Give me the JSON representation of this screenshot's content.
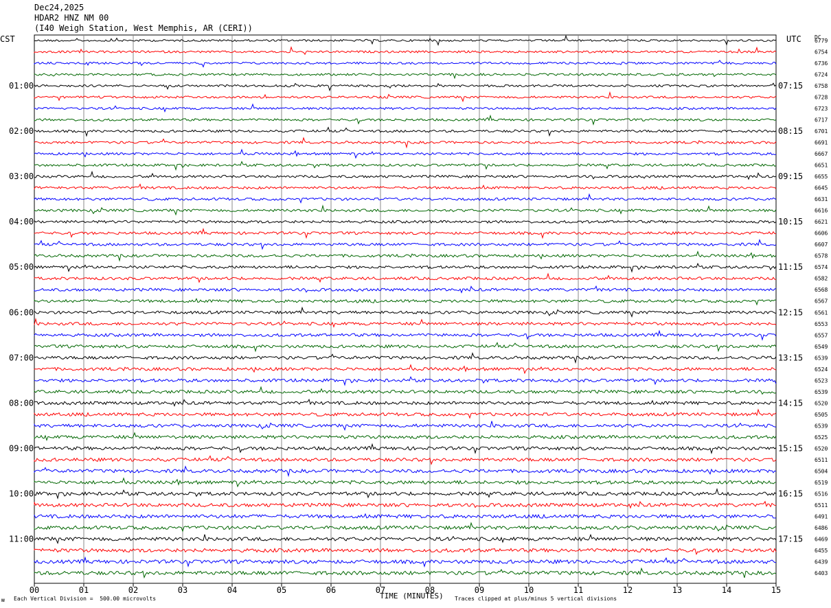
{
  "header": {
    "date": "Dec24,2025",
    "station": "HDAR2 HNZ NM 00",
    "location": "(I40 Weigh Station, West Memphis, AR (CERI))"
  },
  "chart_data": {
    "type": "line",
    "title": "",
    "xlabel": "TIME (MINUTES)",
    "xlim": [
      0,
      15
    ],
    "x_ticks": [
      "00",
      "01",
      "02",
      "03",
      "04",
      "05",
      "06",
      "07",
      "08",
      "09",
      "10",
      "11",
      "12",
      "13",
      "14",
      "15"
    ],
    "left_axis_label": "CST",
    "right_axis_label": "UTC",
    "dc_label": "DC",
    "left_hour_labels": [
      "01:00",
      "02:00",
      "03:00",
      "04:00",
      "05:00",
      "06:00",
      "07:00",
      "08:00",
      "09:00",
      "10:00",
      "11:00"
    ],
    "right_hour_labels": [
      "07:15",
      "08:15",
      "09:15",
      "10:15",
      "11:15",
      "12:15",
      "13:15",
      "14:15",
      "15:15",
      "16:15",
      "17:15"
    ],
    "trace_colors": [
      "#000000",
      "#ff0000",
      "#0000ff",
      "#006600"
    ],
    "dc_offsets": [
      "6779",
      "6754",
      "6736",
      "6724",
      "6758",
      "6728",
      "6723",
      "6717",
      "6701",
      "6691",
      "6667",
      "6651",
      "6655",
      "6645",
      "6631",
      "6616",
      "6621",
      "6606",
      "6607",
      "6578",
      "6574",
      "6582",
      "6568",
      "6567",
      "6561",
      "6553",
      "6557",
      "6549",
      "6539",
      "6524",
      "6523",
      "6539",
      "6520",
      "6505",
      "6539",
      "6525",
      "6520",
      "6511",
      "6504",
      "6519",
      "6516",
      "6511",
      "6491",
      "6486",
      "6469",
      "6455",
      "6439",
      "6403"
    ],
    "grid": true
  },
  "footer": {
    "scale_note": "Each Vertical Division =  500.00 microvolts",
    "clip_note": "Traces clipped at plus/minus 5 vertical divisions",
    "corner_mark": "ᴍ"
  }
}
